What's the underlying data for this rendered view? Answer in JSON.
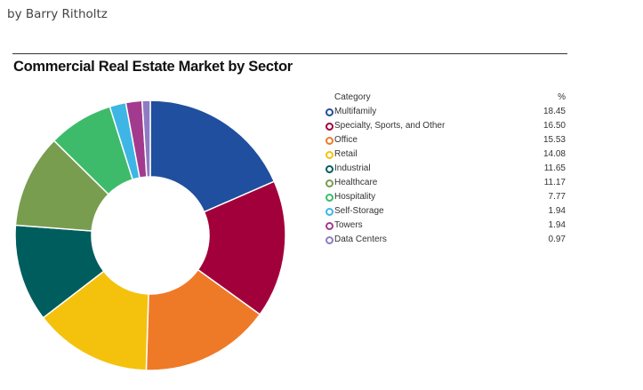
{
  "page": {
    "byline": "by Barry Ritholtz"
  },
  "chart_data": {
    "type": "pie",
    "title": "Commercial Real Estate Market by Sector",
    "legend_header": {
      "category": "Category",
      "value": "%"
    },
    "legend_position": "right",
    "donut": true,
    "slices": [
      {
        "label": "Multifamily",
        "value": 18.45,
        "display": "18.45",
        "color": "#1f4f9e"
      },
      {
        "label": "Specialty, Sports, and Other",
        "value": 16.5,
        "display": "16.50",
        "color": "#a2003a"
      },
      {
        "label": "Office",
        "value": 15.53,
        "display": "15.53",
        "color": "#ee7a28"
      },
      {
        "label": "Retail",
        "value": 14.08,
        "display": "14.08",
        "color": "#f4c20d"
      },
      {
        "label": "Industrial",
        "value": 11.65,
        "display": "11.65",
        "color": "#005d5d"
      },
      {
        "label": "Healthcare",
        "value": 11.17,
        "display": "11.17",
        "color": "#789d4f"
      },
      {
        "label": "Hospitality",
        "value": 7.77,
        "display": "7.77",
        "color": "#3dbb6a"
      },
      {
        "label": "Self-Storage",
        "value": 1.94,
        "display": "1.94",
        "color": "#3db6e6"
      },
      {
        "label": "Towers",
        "value": 1.94,
        "display": "1.94",
        "color": "#a23b8e"
      },
      {
        "label": "Data Centers",
        "value": 0.97,
        "display": "0.97",
        "color": "#8e7cc3"
      }
    ]
  }
}
